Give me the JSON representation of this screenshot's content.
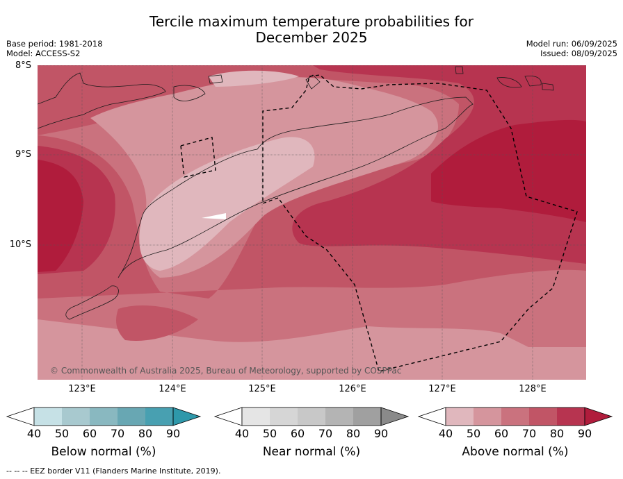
{
  "title_line1": "Tercile maximum temperature probabilities for",
  "title_line2": "December 2025",
  "base_period": "Base period: 1981-2018",
  "model": "Model: ACCESS-S2",
  "model_run": "Model run: 06/09/2025",
  "issued": "Issued: 08/09/2025",
  "lat_labels": [
    "8°S",
    "9°S",
    "10°S"
  ],
  "lon_labels": [
    "123°E",
    "124°E",
    "125°E",
    "126°E",
    "127°E",
    "128°E"
  ],
  "copyright": "© Commonwealth of Australia 2025, Bureau of Meteorology, supported by COSPPac",
  "colorbars": [
    {
      "label": "Below normal (%)",
      "ticks": [
        "40",
        "50",
        "60",
        "70",
        "80",
        "90"
      ],
      "colors": [
        "#c6e1e6",
        "#a8c9cf",
        "#89b8c0",
        "#68a7b3",
        "#48a0b1",
        "#2e98aa"
      ]
    },
    {
      "label": "Near normal (%)",
      "ticks": [
        "40",
        "50",
        "60",
        "70",
        "80",
        "90"
      ],
      "colors": [
        "#e5e5e5",
        "#d6d6d6",
        "#c8c8c8",
        "#b4b4b4",
        "#a0a0a0",
        "#8a8a8a"
      ]
    },
    {
      "label": "Above normal (%)",
      "ticks": [
        "40",
        "50",
        "60",
        "70",
        "80",
        "90"
      ],
      "colors": [
        "#e0b7bd",
        "#d5959d",
        "#ca727e",
        "#c15566",
        "#b73450",
        "#b01c3c"
      ]
    }
  ],
  "footer": "--  --  -- EEZ border V11 (Flanders Marine Institute, 2019)."
}
